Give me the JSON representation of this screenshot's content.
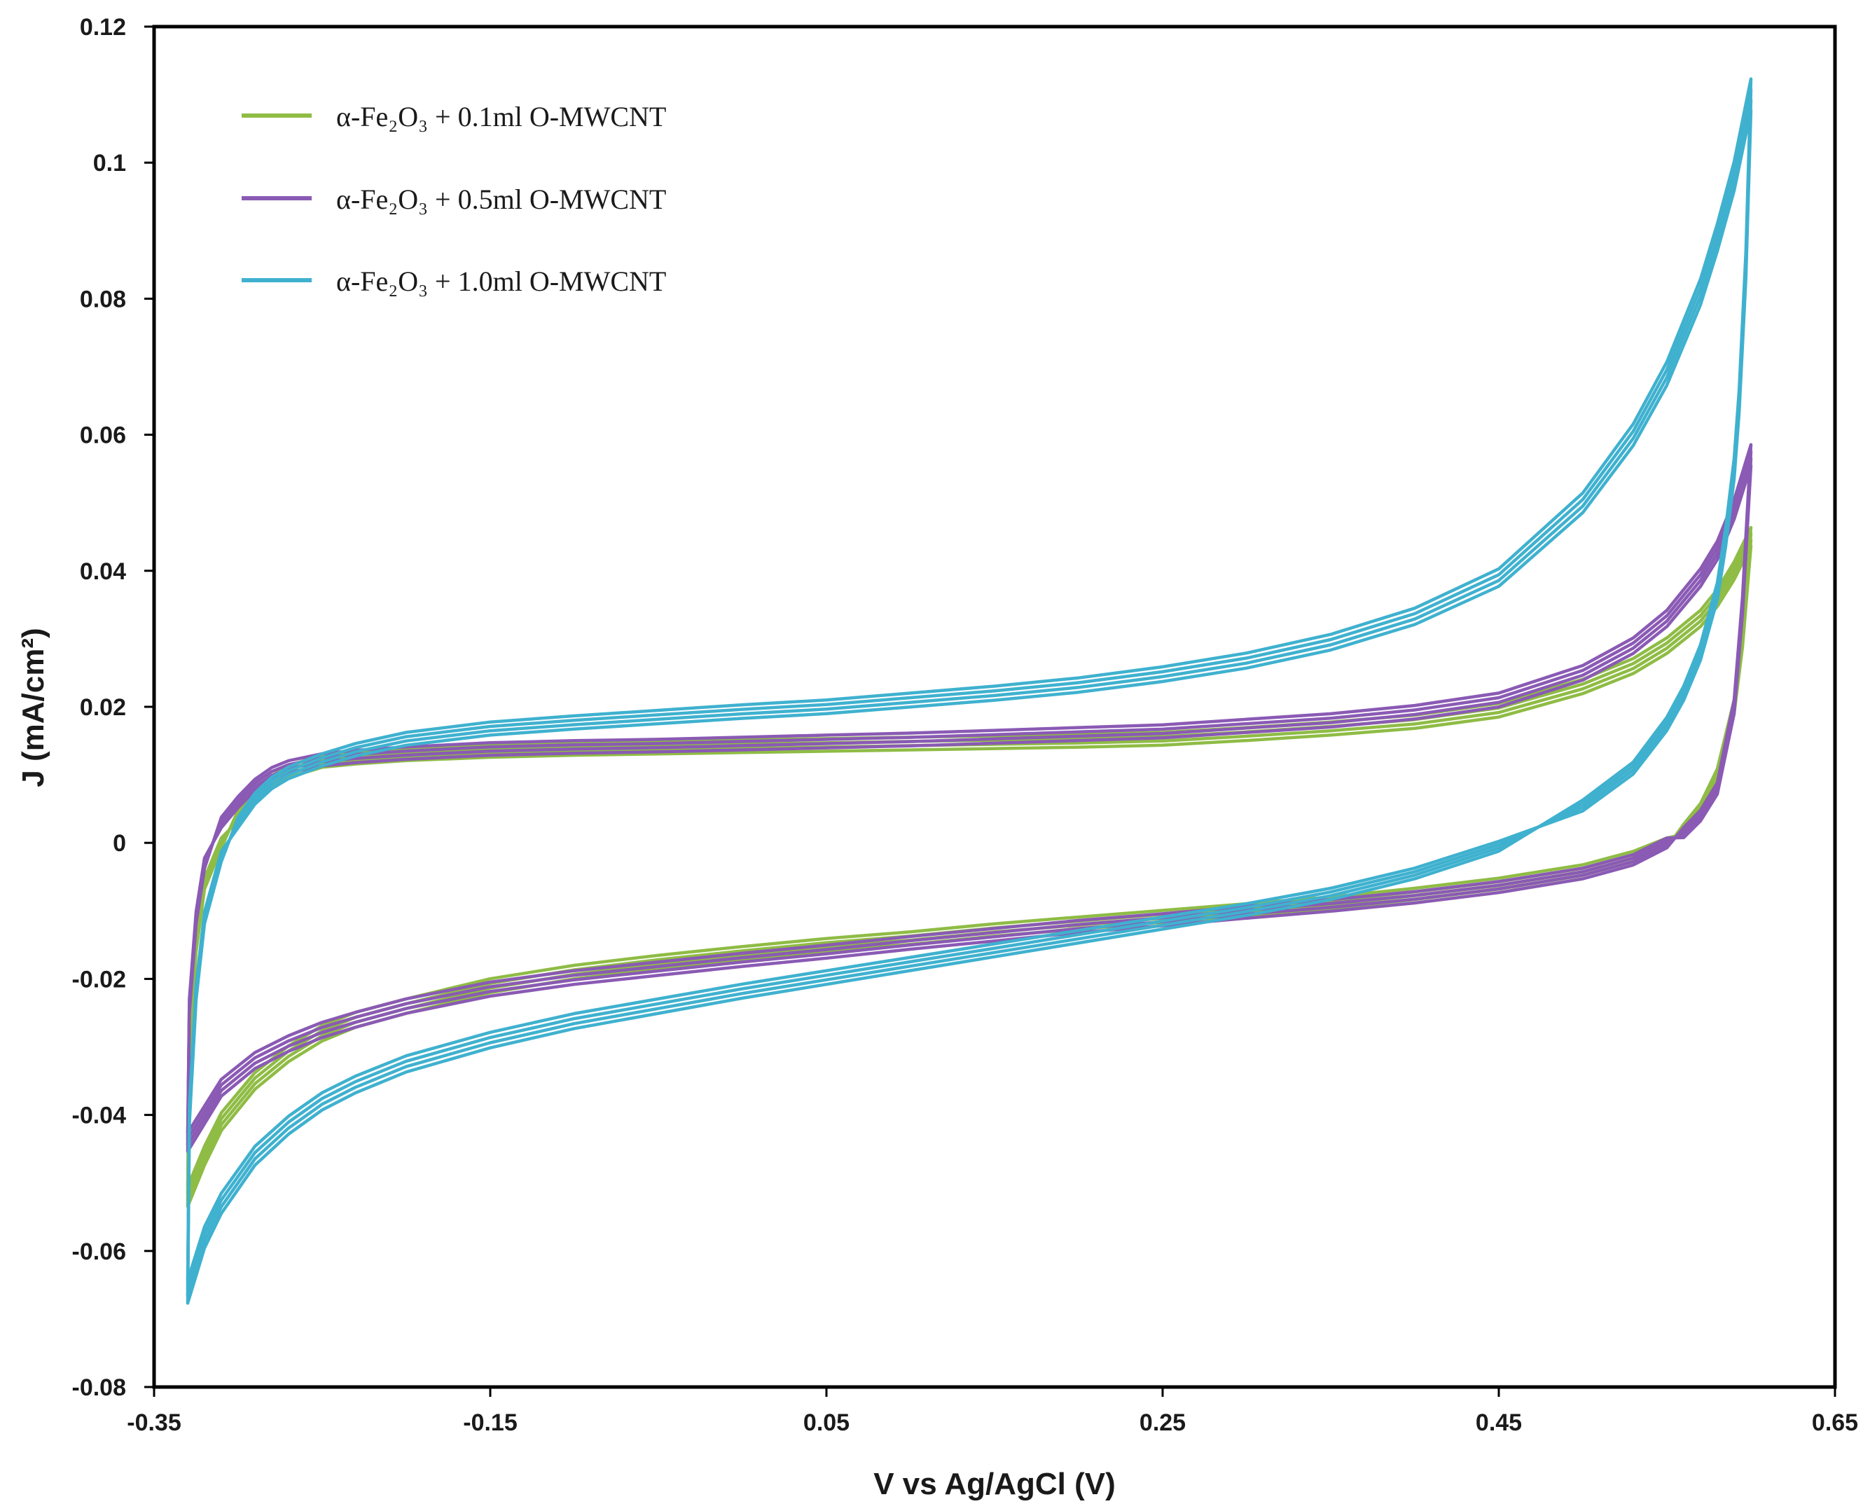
{
  "chart_data": {
    "type": "line",
    "title": "",
    "xlabel": "V vs Ag/AgCl (V)",
    "ylabel": "J (mA/cm²)",
    "xlim": [
      -0.35,
      0.65
    ],
    "ylim": [
      -0.08,
      0.12
    ],
    "xticks": [
      -0.35,
      -0.15,
      0.05,
      0.25,
      0.45,
      0.65
    ],
    "xtick_labels": [
      "-0.35",
      "-0.15",
      "0.05",
      "0.25",
      "0.45",
      "0.65"
    ],
    "yticks": [
      -0.08,
      -0.06,
      -0.04,
      -0.02,
      0,
      0.02,
      0.04,
      0.06,
      0.08,
      0.1,
      0.12
    ],
    "ytick_labels": [
      "-0.08",
      "-0.06",
      "-0.04",
      "-0.02",
      "0",
      "0.02",
      "0.04",
      "0.06",
      "0.08",
      "0.1",
      "0.12"
    ],
    "grid": false,
    "legend_position": "top-left",
    "series": [
      {
        "name": "α-Fe₂O₃ + 0.1ml O-MWCNT",
        "color": "#8fbc45",
        "forward": {
          "x": [
            -0.33,
            -0.329,
            -0.325,
            -0.32,
            -0.31,
            -0.3,
            -0.29,
            -0.28,
            -0.27,
            -0.25,
            -0.23,
            -0.2,
            -0.15,
            -0.1,
            -0.05,
            0.0,
            0.05,
            0.1,
            0.15,
            0.2,
            0.25,
            0.3,
            0.35,
            0.4,
            0.45,
            0.5,
            0.53,
            0.55,
            0.57,
            0.58,
            0.59,
            0.6
          ],
          "y": [
            -0.052,
            -0.03,
            -0.015,
            -0.006,
            0.0,
            0.004,
            0.007,
            0.009,
            0.0105,
            0.012,
            0.0125,
            0.013,
            0.0135,
            0.0138,
            0.014,
            0.0142,
            0.0144,
            0.0146,
            0.0148,
            0.015,
            0.0153,
            0.016,
            0.0168,
            0.0178,
            0.0195,
            0.023,
            0.026,
            0.029,
            0.033,
            0.036,
            0.04,
            0.045
          ]
        },
        "reverse": {
          "x": [
            0.6,
            0.595,
            0.59,
            0.58,
            0.57,
            0.56,
            0.55,
            0.53,
            0.5,
            0.45,
            0.4,
            0.35,
            0.3,
            0.25,
            0.2,
            0.15,
            0.1,
            0.05,
            0.0,
            -0.05,
            -0.1,
            -0.15,
            -0.2,
            -0.23,
            -0.25,
            -0.27,
            -0.29,
            -0.31,
            -0.32,
            -0.33
          ],
          "y": [
            0.045,
            0.03,
            0.02,
            0.01,
            0.005,
            0.002,
            0.0,
            -0.002,
            -0.004,
            -0.006,
            -0.0075,
            -0.0088,
            -0.0098,
            -0.0108,
            -0.0118,
            -0.0128,
            -0.014,
            -0.015,
            -0.0162,
            -0.0175,
            -0.019,
            -0.021,
            -0.024,
            -0.026,
            -0.028,
            -0.031,
            -0.035,
            -0.041,
            -0.046,
            -0.052
          ]
        }
      },
      {
        "name": "α-Fe₂O₃ + 0.5ml O-MWCNT",
        "color": "#8a5ab4",
        "forward": {
          "x": [
            -0.33,
            -0.329,
            -0.325,
            -0.32,
            -0.31,
            -0.3,
            -0.29,
            -0.28,
            -0.27,
            -0.25,
            -0.23,
            -0.2,
            -0.15,
            -0.1,
            -0.05,
            0.0,
            0.05,
            0.1,
            0.15,
            0.2,
            0.25,
            0.3,
            0.35,
            0.4,
            0.45,
            0.5,
            0.53,
            0.55,
            0.57,
            0.58,
            0.59,
            0.6
          ],
          "y": [
            -0.044,
            -0.024,
            -0.011,
            -0.003,
            0.003,
            0.006,
            0.0085,
            0.0102,
            0.0112,
            0.0122,
            0.0127,
            0.0132,
            0.0138,
            0.0141,
            0.0143,
            0.0146,
            0.0149,
            0.0152,
            0.0156,
            0.016,
            0.0164,
            0.0172,
            0.018,
            0.0192,
            0.021,
            0.025,
            0.029,
            0.033,
            0.039,
            0.043,
            0.049,
            0.057
          ]
        },
        "reverse": {
          "x": [
            0.6,
            0.595,
            0.59,
            0.58,
            0.57,
            0.56,
            0.55,
            0.53,
            0.5,
            0.45,
            0.4,
            0.35,
            0.3,
            0.25,
            0.2,
            0.15,
            0.1,
            0.05,
            0.0,
            -0.05,
            -0.1,
            -0.15,
            -0.2,
            -0.23,
            -0.25,
            -0.27,
            -0.29,
            -0.31,
            -0.32,
            -0.33
          ],
          "y": [
            0.057,
            0.035,
            0.02,
            0.008,
            0.004,
            0.0015,
            0.0,
            -0.0025,
            -0.0045,
            -0.0065,
            -0.008,
            -0.0092,
            -0.0102,
            -0.0113,
            -0.0123,
            -0.0135,
            -0.0147,
            -0.016,
            -0.0172,
            -0.0185,
            -0.0198,
            -0.0215,
            -0.024,
            -0.026,
            -0.0275,
            -0.0295,
            -0.032,
            -0.036,
            -0.04,
            -0.044
          ]
        }
      },
      {
        "name": "α-Fe₂O₃ + 1.0ml O-MWCNT",
        "color": "#3fb1cf",
        "forward": {
          "x": [
            -0.33,
            -0.329,
            -0.325,
            -0.32,
            -0.31,
            -0.3,
            -0.29,
            -0.28,
            -0.27,
            -0.25,
            -0.23,
            -0.2,
            -0.15,
            -0.1,
            -0.05,
            0.0,
            0.05,
            0.1,
            0.15,
            0.2,
            0.25,
            0.3,
            0.35,
            0.4,
            0.45,
            0.5,
            0.53,
            0.55,
            0.57,
            0.58,
            0.59,
            0.6
          ],
          "y": [
            -0.066,
            -0.04,
            -0.022,
            -0.011,
            -0.002,
            0.003,
            0.0065,
            0.0088,
            0.0103,
            0.0122,
            0.0137,
            0.0153,
            0.0168,
            0.0177,
            0.0185,
            0.0193,
            0.02,
            0.021,
            0.022,
            0.0232,
            0.0248,
            0.0268,
            0.0295,
            0.0333,
            0.039,
            0.05,
            0.06,
            0.069,
            0.081,
            0.089,
            0.098,
            0.11
          ]
        },
        "reverse": {
          "x": [
            0.6,
            0.597,
            0.593,
            0.59,
            0.585,
            0.58,
            0.57,
            0.56,
            0.55,
            0.53,
            0.5,
            0.45,
            0.4,
            0.35,
            0.3,
            0.25,
            0.2,
            0.15,
            0.1,
            0.05,
            0.0,
            -0.05,
            -0.1,
            -0.15,
            -0.2,
            -0.23,
            -0.25,
            -0.27,
            -0.29,
            -0.31,
            -0.32,
            -0.33
          ],
          "y": [
            0.11,
            0.085,
            0.065,
            0.055,
            0.045,
            0.037,
            0.028,
            0.022,
            0.0175,
            0.011,
            0.0055,
            -0.0005,
            -0.0045,
            -0.0075,
            -0.0098,
            -0.0118,
            -0.0138,
            -0.0158,
            -0.0178,
            -0.0198,
            -0.0218,
            -0.024,
            -0.0262,
            -0.029,
            -0.0325,
            -0.0355,
            -0.038,
            -0.0415,
            -0.046,
            -0.053,
            -0.058,
            -0.066
          ]
        }
      }
    ]
  }
}
